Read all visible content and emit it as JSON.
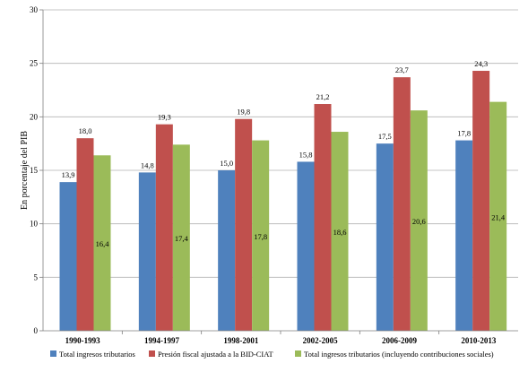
{
  "chart_data": {
    "type": "bar",
    "ylabel": "En porcentaje del PIB",
    "ylim": [
      0,
      30
    ],
    "yticks": [
      0,
      5,
      10,
      15,
      20,
      25,
      30
    ],
    "categories": [
      "1990-1993",
      "1994-1997",
      "1998-2001",
      "2002-2005",
      "2006-2009",
      "2010-2013"
    ],
    "series": [
      {
        "name": "Total ingresos tributarios",
        "color": "#4F81BD",
        "values": [
          13.9,
          14.8,
          15.0,
          15.8,
          17.5,
          17.8
        ],
        "labels": [
          "13,9",
          "14,8",
          "15,0",
          "15,8",
          "17,5",
          "17,8"
        ]
      },
      {
        "name": "Presión fiscal ajustada a la BID-CIAT",
        "color": "#C0504D",
        "values": [
          18.0,
          19.3,
          19.8,
          21.2,
          23.7,
          24.3
        ],
        "labels": [
          "18,0",
          "19,3",
          "19,8",
          "21,2",
          "23,7",
          "24,3"
        ]
      },
      {
        "name": "Total ingresos tributarios (incluyendo contribuciones sociales)",
        "color": "#9BBB59",
        "values": [
          16.4,
          17.4,
          17.8,
          18.6,
          20.6,
          21.4
        ],
        "labels": [
          "16,4",
          "17,4",
          "17,8",
          "18,6",
          "20,6",
          "21,4"
        ]
      }
    ],
    "grid": true,
    "legend_position": "bottom"
  }
}
